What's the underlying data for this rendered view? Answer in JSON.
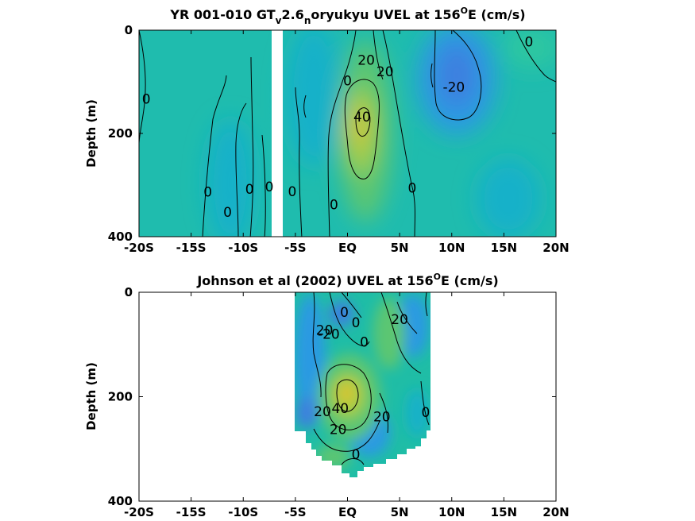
{
  "figure": {
    "colors": {
      "background": "#ffffff",
      "axis": "#000000",
      "contour_line": "#000000"
    },
    "colormap": [
      "#3d7fe0",
      "#2b9ae2",
      "#19b1c9",
      "#1fbda6",
      "#5cc672",
      "#a6cd44",
      "#d7c430"
    ]
  },
  "chart_data": [
    {
      "type": "heatmap",
      "title_parts": [
        "YR 001-010 GT",
        "v",
        "2.6",
        "n",
        "oryukyu UVEL at 156",
        "O",
        "E (cm/s)"
      ],
      "ylabel": "Depth (m)",
      "xlim": [
        -20,
        20
      ],
      "ylim": [
        0,
        400
      ],
      "y_reversed": true,
      "x_ticks": [
        -20,
        -15,
        -10,
        -5,
        0,
        5,
        10,
        15,
        20
      ],
      "x_tick_labels": [
        "-20S",
        "-15S",
        "-10S",
        "-5S",
        "EQ",
        "5N",
        "10N",
        "15N",
        "20N"
      ],
      "y_ticks": [
        0,
        200,
        400
      ],
      "y_tick_labels": [
        "0",
        "200",
        "400"
      ],
      "gap": {
        "x_range": [
          -7.5,
          -6.3
        ],
        "note_color": "#ffffff"
      },
      "contour_labels": [
        {
          "text": "0",
          "x": -19.3,
          "y": 133
        },
        {
          "text": "0",
          "x": -13.4,
          "y": 313
        },
        {
          "text": "0",
          "x": -11.5,
          "y": 352
        },
        {
          "text": "0",
          "x": -9.4,
          "y": 308
        },
        {
          "text": "0",
          "x": -7.5,
          "y": 303
        },
        {
          "text": "0",
          "x": -5.3,
          "y": 312
        },
        {
          "text": "0",
          "x": -1.3,
          "y": 338
        },
        {
          "text": "0",
          "x": 0,
          "y": 98
        },
        {
          "text": "20",
          "x": 1.8,
          "y": 58
        },
        {
          "text": "20",
          "x": 3.6,
          "y": 80
        },
        {
          "text": "40",
          "x": 1.4,
          "y": 168
        },
        {
          "text": "0",
          "x": 6.2,
          "y": 305
        },
        {
          "text": "-20",
          "x": 10.2,
          "y": 110
        },
        {
          "text": "0",
          "x": 17.4,
          "y": 22
        }
      ]
    },
    {
      "type": "heatmap",
      "title_parts": [
        "Johnson et al (2002) UVEL at 156",
        "O",
        "E (cm/s)"
      ],
      "ylabel": "Depth (m)",
      "xlim": [
        -20,
        20
      ],
      "ylim": [
        0,
        400
      ],
      "y_reversed": true,
      "x_ticks": [
        -20,
        -15,
        -10,
        -5,
        0,
        5,
        10,
        15,
        20
      ],
      "x_tick_labels": [
        "-20S",
        "-15S",
        "-10S",
        "-5S",
        "EQ",
        "5N",
        "10N",
        "15N",
        "20N"
      ],
      "y_ticks": [
        0,
        200,
        400
      ],
      "y_tick_labels": [
        "0",
        "200",
        "400"
      ],
      "data_x_range": [
        -5,
        8
      ],
      "contour_labels": [
        {
          "text": "20",
          "x": -2.2,
          "y": 72
        },
        {
          "text": "-20",
          "x": -1.8,
          "y": 80
        },
        {
          "text": "0",
          "x": -0.3,
          "y": 38
        },
        {
          "text": "0",
          "x": 0.8,
          "y": 58
        },
        {
          "text": "0",
          "x": 1.6,
          "y": 95
        },
        {
          "text": "20",
          "x": 5,
          "y": 52
        },
        {
          "text": "20",
          "x": -2.4,
          "y": 228
        },
        {
          "text": "40",
          "x": -0.7,
          "y": 222
        },
        {
          "text": "20",
          "x": -0.9,
          "y": 262
        },
        {
          "text": "20",
          "x": 3.3,
          "y": 238
        },
        {
          "text": "0",
          "x": 7.5,
          "y": 230
        },
        {
          "text": "0",
          "x": 0.8,
          "y": 310
        }
      ]
    }
  ]
}
